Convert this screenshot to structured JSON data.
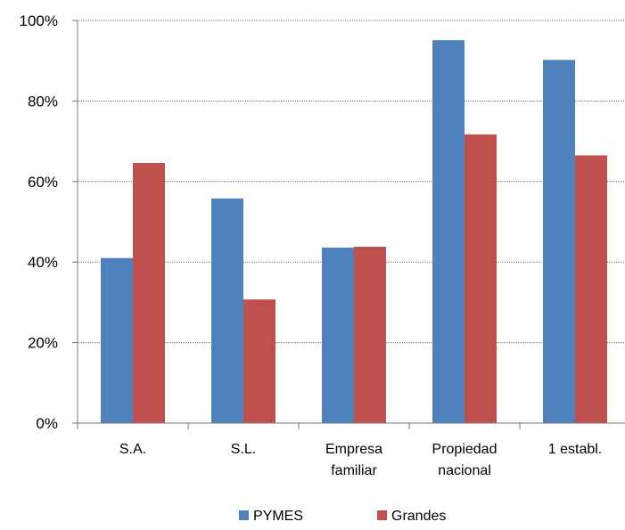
{
  "chart_data": {
    "type": "bar",
    "categories": [
      [
        "S.A."
      ],
      [
        "S.L."
      ],
      [
        "Empresa",
        "familiar"
      ],
      [
        "Propiedad",
        "nacional"
      ],
      [
        "1 establ."
      ]
    ],
    "series": [
      {
        "name": "PYMES",
        "color": "#4F81BD",
        "values": [
          41,
          55.8,
          43.6,
          95.1,
          90.2
        ]
      },
      {
        "name": "Grandes",
        "color": "#C0504D",
        "values": [
          64.6,
          30.7,
          43.8,
          71.7,
          66.5
        ]
      }
    ],
    "y_ticks": [
      "0%",
      "20%",
      "40%",
      "60%",
      "80%",
      "100%"
    ],
    "ylim": [
      0,
      100
    ],
    "grid": true,
    "legend_position": "bottom"
  }
}
